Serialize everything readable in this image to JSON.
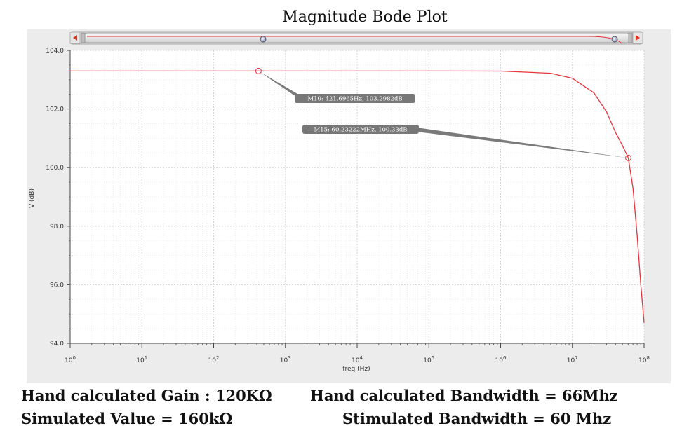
{
  "chart_data": {
    "type": "line",
    "title": "Magnitude Bode Plot",
    "xlabel": "freq (Hz)",
    "ylabel": "V (dB)",
    "x_scale": "log",
    "xlim": [
      1,
      100000000
    ],
    "ylim": [
      94.0,
      104.0
    ],
    "x_ticks": [
      {
        "base": "10",
        "exp": "0"
      },
      {
        "base": "10",
        "exp": "1"
      },
      {
        "base": "10",
        "exp": "2"
      },
      {
        "base": "10",
        "exp": "3"
      },
      {
        "base": "10",
        "exp": "4"
      },
      {
        "base": "10",
        "exp": "5"
      },
      {
        "base": "10",
        "exp": "6"
      },
      {
        "base": "10",
        "exp": "7"
      },
      {
        "base": "10",
        "exp": "8"
      }
    ],
    "y_ticks": [
      "104.0",
      "102.0",
      "100.0",
      "98.0",
      "96.0",
      "94.0"
    ],
    "grid": true,
    "series": [
      {
        "color": "#e8323c",
        "x": [
          1,
          10,
          100,
          1000,
          10000,
          100000,
          1000000,
          5000000,
          10000000,
          20000000,
          30000000,
          40000000,
          50000000,
          60232220,
          70000000,
          80000000,
          90000000,
          100000000
        ],
        "y": [
          103.298,
          103.298,
          103.298,
          103.298,
          103.298,
          103.298,
          103.295,
          103.22,
          103.05,
          102.55,
          101.9,
          101.2,
          100.75,
          100.33,
          99.3,
          97.7,
          96.0,
          94.7
        ]
      }
    ],
    "markers": [
      {
        "label": "M10: 421.6965Hz, 103.2982dB",
        "x": 421.6965,
        "y": 103.2982
      },
      {
        "label": "M15: 60.23222MHz, 100.33dB",
        "x": 60232220,
        "y": 100.33
      }
    ]
  },
  "notes": {
    "hand_gain": "Hand calculated Gain : 120KΩ",
    "sim_value": "Simulated Value = 160kΩ",
    "hand_bw": "Hand calculated Bandwidth = 66Mhz",
    "sim_bw": "Stimulated Bandwidth = 60 Mhz"
  }
}
